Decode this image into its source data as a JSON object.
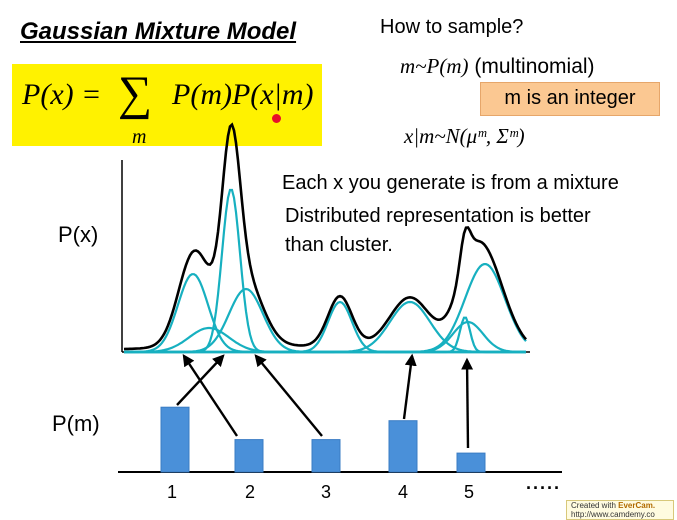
{
  "title": "Gaussian Mixture Model",
  "formula": {
    "lhs": "P(x) =",
    "sigma": "∑",
    "sum_index": "m",
    "rhs": "P(m)P(x|m)"
  },
  "sampling": {
    "question": "How to sample?",
    "step1_math": "m~P(m)",
    "step1_note": "(multinomial)",
    "integer_note": "m is an integer",
    "step2_math": "x|m~N(μᵐ, Σᵐ)"
  },
  "notes": {
    "line1": "Each x you generate is from a mixture",
    "line2": "Distributed representation is better",
    "line3": "than cluster."
  },
  "axis_labels": {
    "px": "P(x)",
    "pm": "P(m)"
  },
  "components": [
    "1",
    "2",
    "3",
    "4",
    "5"
  ],
  "component_weights": [
    0.24,
    0.12,
    0.12,
    0.19,
    0.07
  ],
  "continuation": "·····",
  "watermark": {
    "prefix": "Created with ",
    "brand": "EverCam.",
    "url": "http://www.camdemy.co"
  },
  "colors": {
    "formula_bg": "#fff200",
    "integer_box": "#fbc892",
    "component_curve": "#17b0c0",
    "mixture_curve": "#000000",
    "bar": "#4a90d9"
  }
}
